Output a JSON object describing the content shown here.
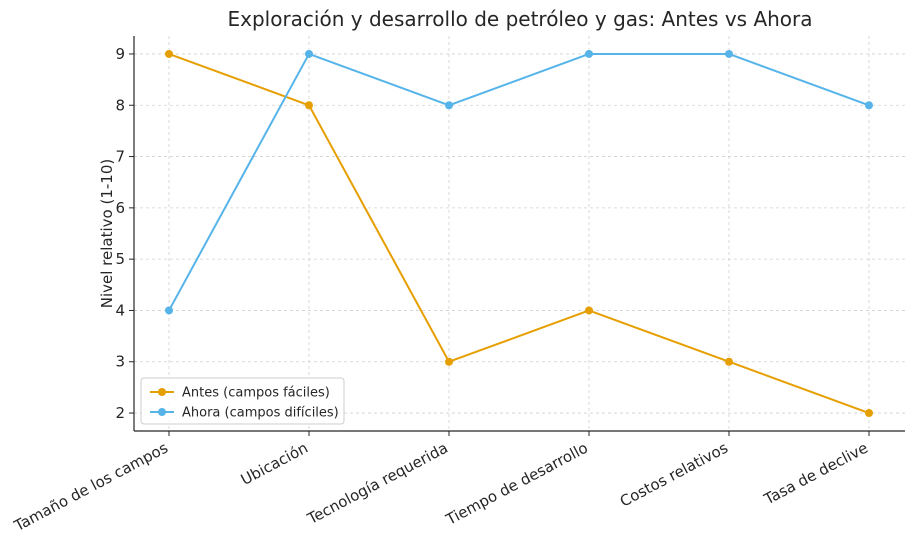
{
  "chart_data": {
    "type": "line",
    "title": "Exploración y desarrollo de petróleo y gas: Antes vs Ahora",
    "xlabel": "",
    "ylabel": "Nivel relativo (1-10)",
    "categories": [
      "Tamaño de los campos",
      "Ubicación",
      "Tecnología requerida",
      "Tiempo de desarrollo",
      "Costos relativos",
      "Tasa de declive"
    ],
    "series": [
      {
        "name": "Antes (campos fáciles)",
        "values": [
          9,
          8,
          3,
          4,
          3,
          2
        ],
        "color": "#E69F00"
      },
      {
        "name": "Ahora (campos difíciles)",
        "values": [
          4,
          9,
          8,
          9,
          9,
          8
        ],
        "color": "#56B4E9"
      }
    ],
    "ylim": [
      1.65,
      9.35
    ],
    "yticks": [
      2,
      3,
      4,
      5,
      6,
      7,
      8,
      9
    ],
    "grid": true,
    "legend_position": "bottom-left"
  }
}
